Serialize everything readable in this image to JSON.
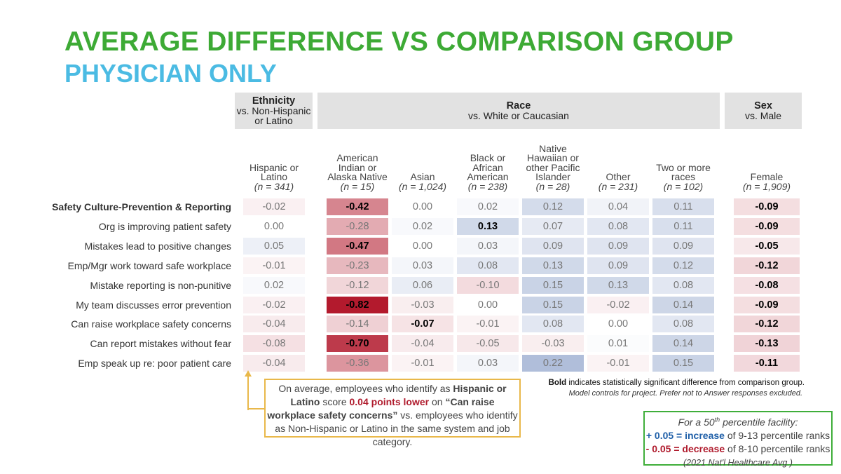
{
  "title": "AVERAGE DIFFERENCE VS COMPARISON GROUP",
  "subtitle": "PHYSICIAN ONLY",
  "groups": [
    {
      "name": "Ethnicity",
      "sub": "vs. Non-Hispanic or Latino"
    },
    {
      "name": "Race",
      "sub": "vs. White or Caucasian"
    },
    {
      "name": "Sex",
      "sub": "vs. Male"
    }
  ],
  "chart_data": {
    "type": "heatmap",
    "columns": [
      {
        "label": "Hispanic or Latino",
        "n": "(n = 341)"
      },
      {
        "label": "American Indian or Alaska Native",
        "n": "(n = 15)"
      },
      {
        "label": "Asian",
        "n": "(n = 1,024)"
      },
      {
        "label": "Black or African American",
        "n": "(n = 238)"
      },
      {
        "label": "Native Hawaiian or other Pacific Islander",
        "n": "(n = 28)"
      },
      {
        "label": "Other",
        "n": "(n = 231)"
      },
      {
        "label": "Two or more races",
        "n": "(n = 102)"
      },
      {
        "label": "Female",
        "n": "(n = 1,909)"
      }
    ],
    "rows": [
      {
        "label": "Safety Culture-Prevention & Reporting",
        "header": true,
        "values": [
          "-0.02",
          "-0.42",
          "0.00",
          "0.02",
          "0.12",
          "0.04",
          "0.11",
          "-0.09"
        ],
        "bold": [
          false,
          true,
          false,
          false,
          false,
          false,
          false,
          true
        ]
      },
      {
        "label": "Org is improving patient safety",
        "values": [
          "0.00",
          "-0.28",
          "0.02",
          "0.13",
          "0.07",
          "0.08",
          "0.11",
          "-0.09"
        ],
        "bold": [
          false,
          false,
          false,
          true,
          false,
          false,
          false,
          true
        ]
      },
      {
        "label": "Mistakes lead to positive changes",
        "values": [
          "0.05",
          "-0.47",
          "0.00",
          "0.03",
          "0.09",
          "0.09",
          "0.09",
          "-0.05"
        ],
        "bold": [
          false,
          true,
          false,
          false,
          false,
          false,
          false,
          true
        ]
      },
      {
        "label": "Emp/Mgr work toward safe workplace",
        "values": [
          "-0.01",
          "-0.23",
          "0.03",
          "0.08",
          "0.13",
          "0.09",
          "0.12",
          "-0.12"
        ],
        "bold": [
          false,
          false,
          false,
          false,
          false,
          false,
          false,
          true
        ]
      },
      {
        "label": "Mistake reporting is non-punitive",
        "values": [
          "0.02",
          "-0.12",
          "0.06",
          "-0.10",
          "0.15",
          "0.13",
          "0.08",
          "-0.08"
        ],
        "bold": [
          false,
          false,
          false,
          false,
          false,
          false,
          false,
          true
        ]
      },
      {
        "label": "My team discusses error prevention",
        "values": [
          "-0.02",
          "-0.82",
          "-0.03",
          "0.00",
          "0.15",
          "-0.02",
          "0.14",
          "-0.09"
        ],
        "bold": [
          false,
          true,
          false,
          false,
          false,
          false,
          false,
          true
        ]
      },
      {
        "label": "Can raise workplace safety concerns",
        "values": [
          "-0.04",
          "-0.14",
          "-0.07",
          "-0.01",
          "0.08",
          "0.00",
          "0.08",
          "-0.12"
        ],
        "bold": [
          false,
          false,
          true,
          false,
          false,
          false,
          false,
          true
        ]
      },
      {
        "label": "Can report mistakes without fear",
        "values": [
          "-0.08",
          "-0.70",
          "-0.04",
          "-0.05",
          "-0.03",
          "0.01",
          "0.14",
          "-0.13"
        ],
        "bold": [
          false,
          true,
          false,
          false,
          false,
          false,
          false,
          true
        ]
      },
      {
        "label": "Emp speak up re: poor patient care",
        "values": [
          "-0.04",
          "-0.36",
          "-0.01",
          "0.03",
          "0.22",
          "-0.01",
          "0.15",
          "-0.11"
        ],
        "bold": [
          false,
          false,
          false,
          false,
          false,
          false,
          false,
          true
        ]
      }
    ],
    "colors": {
      "negative": "#b2182b",
      "positive": "#9fb0d2"
    }
  },
  "callout": {
    "p1": "On average, employees who identify as ",
    "b1": "Hispanic or Latino",
    "p2": " score ",
    "r1": "0.04 points lower",
    "p3": " on ",
    "b2": "“Can raise workplace safety concerns”",
    "p4": " vs. employees who identify as Non-Hispanic or Latino in the same system and job category."
  },
  "notes": {
    "bold_word": "Bold",
    "line1": " indicates statistically significant difference from comparison group.",
    "line2": "Model controls for project. Prefer not to Answer responses excluded."
  },
  "key": {
    "title": "For a 50",
    "sup": "th",
    "title2": " percentile facility:",
    "pos": "+ 0.05 = increase",
    "pos_rest": " of 9-13 percentile ranks",
    "neg": "- 0.05 = decrease",
    "neg_rest": " of 8-10 percentile ranks",
    "source": "(2021 Nat'l Healthcare Avg )"
  }
}
